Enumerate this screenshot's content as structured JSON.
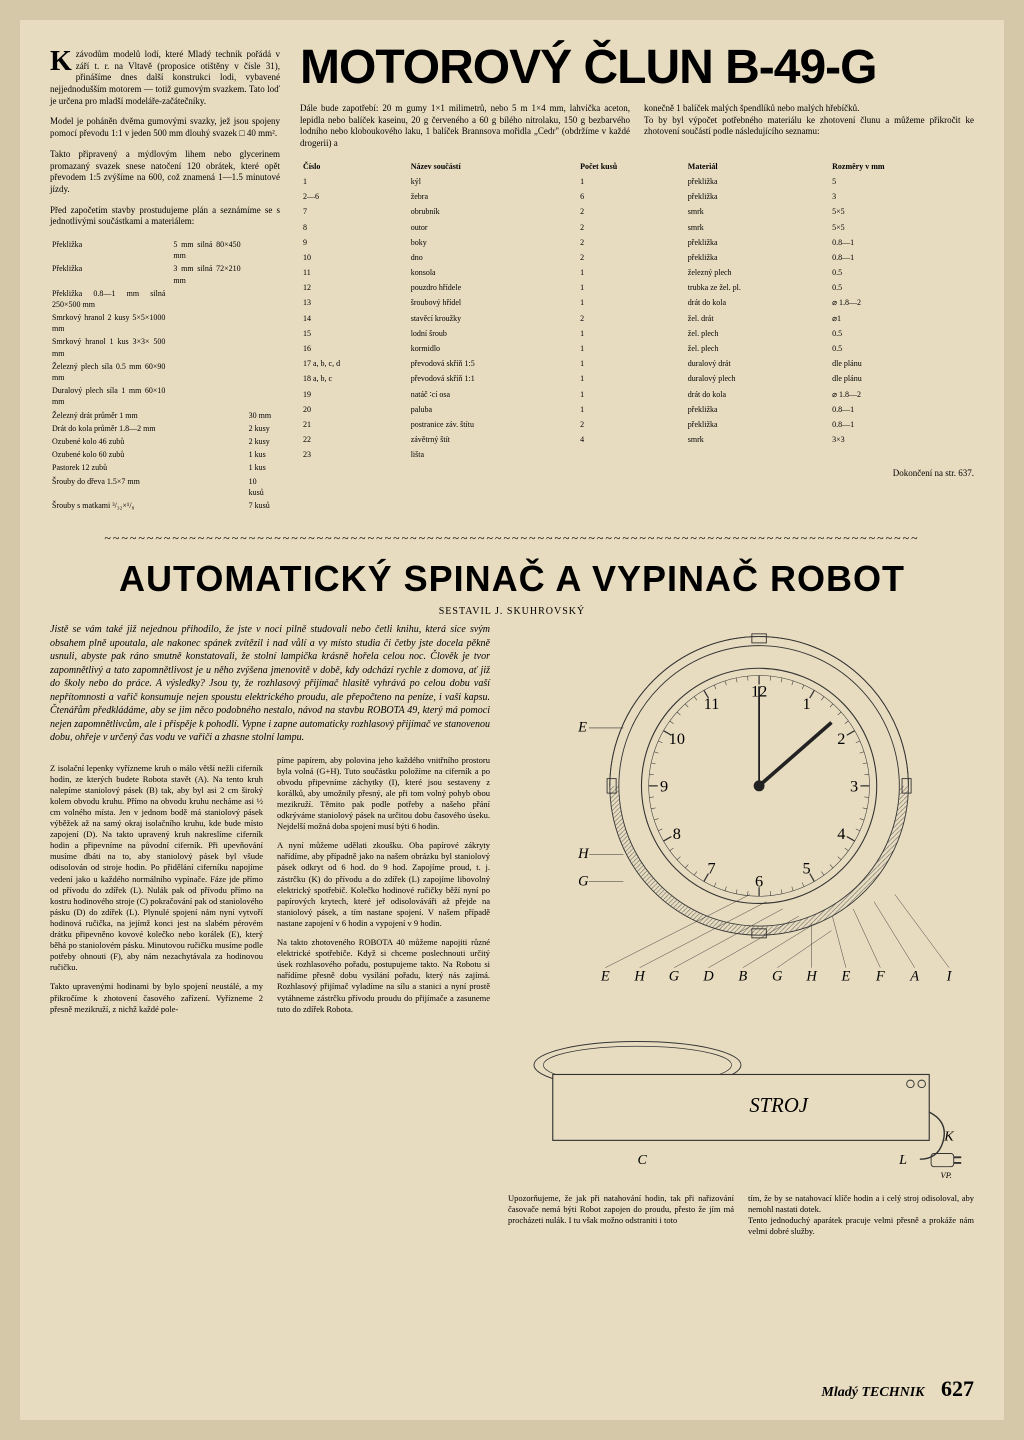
{
  "article1": {
    "dropcap": "K",
    "intro": " závodům modelů lodí, které Mladý technik pořádá v září t. r. na Vltavě (proposice otištěny v čísle 31), přinášíme dnes další konstrukci lodi, vybavené nejjednodušším motorem — totiž gumovým svazkem. Tato loď je určena pro mladší modeláře-začátečníky.",
    "para2": "Model je poháněn dvěma gumovými svazky, jež jsou spojeny pomocí převodu 1:1 v jeden 500 mm dlouhý svazek □ 40 mm².",
    "para3": "Takto připravený a mýdlovým lihem nebo glycerinem promazaný svazek snese natočení 120 obrátek, které opět převodem 1:5 zvýšíme na 600, což znamená 1—1.5 minutové jízdy.",
    "para4": "Před započetím stavby prostudujeme plán a seznámíme se s jednotlivými součástkami a materiálem:",
    "title": "MOTOROVÝ ČLUN B-49-G",
    "rightIntro": "Dále bude zapotřebí: 20 m gumy 1×1 milimetrů, nebo 5 m 1×4 mm, lahvička aceton, lepidla nebo balíček kaseinu, 20 g červeného a 60 g bílého nitrolaku, 150 g bezbarvého lodního nebo kloboukového laku, 1 balíček Brannsova mořidla „Cedr\" (obdržíme v každé drogerii) a",
    "rightIntro2": "konečně 1 balíček malých špendlíků nebo malých hřebíčků.",
    "rightIntro3": "To by byl výpočet potřebného materiálu ke zhotovení člunu a můžeme přikročit ke zhotovení součástí podle následujícího seznamu:",
    "materials": [
      [
        "Překližka",
        "5 mm silná 80×450 mm",
        ""
      ],
      [
        "Překližka",
        "3 mm silná 72×210 mm",
        ""
      ],
      [
        "Překližka 0.8—1 mm silná 250×500 mm",
        "",
        ""
      ],
      [
        "Smrkový hranol 2 kusy 5×5×1000 mm",
        "",
        ""
      ],
      [
        "Smrkový hranol 1 kus 3×3× 500 mm",
        "",
        ""
      ],
      [
        "Železný plech síla 0.5 mm 60×90 mm",
        "",
        ""
      ],
      [
        "Duralový plech síla 1 mm 60×10 mm",
        "",
        ""
      ],
      [
        "Železný drát průměr 1 mm",
        "",
        "30 mm"
      ],
      [
        "Drát do kola průměr 1.8—2 mm",
        "",
        "2 kusy"
      ],
      [
        "Ozubené kolo 46 zubů",
        "",
        "2 kusy"
      ],
      [
        "Ozubené kolo 60 zubů",
        "",
        "1 kus"
      ],
      [
        "Pastorek 12 zubů",
        "",
        "1 kus"
      ],
      [
        "Šrouby do dřeva 1.5×7 mm",
        "",
        "10 kusů"
      ],
      [
        "Šrouby s matkami ³/₃₂×¹/₈",
        "",
        "7 kusů"
      ]
    ],
    "partsHeaders": [
      "Číslo",
      "Název součástí",
      "Počet kusů",
      "Materiál",
      "Rozměry v mm"
    ],
    "parts": [
      [
        "1",
        "kýl",
        "1",
        "překližka",
        "5"
      ],
      [
        "2—6",
        "žebra",
        "6",
        "překližka",
        "3"
      ],
      [
        "7",
        "obrubník",
        "2",
        "smrk",
        "5×5"
      ],
      [
        "8",
        "outor",
        "2",
        "smrk",
        "5×5"
      ],
      [
        "9",
        "boky",
        "2",
        "překližka",
        "0.8—1"
      ],
      [
        "10",
        "dno",
        "2",
        "překližka",
        "0.8—1"
      ],
      [
        "11",
        "konsola",
        "1",
        "železný plech",
        "0.5"
      ],
      [
        "12",
        "pouzdro hřídele",
        "1",
        "trubka ze žel. pl.",
        "0.5"
      ],
      [
        "13",
        "šroubový hřídel",
        "1",
        "drát do kola",
        "⌀ 1.8—2"
      ],
      [
        "14",
        "stavěcí kroužky",
        "2",
        "žel. drát",
        "⌀1"
      ],
      [
        "15",
        "lodní šroub",
        "1",
        "žel. plech",
        "0.5"
      ],
      [
        "16",
        "kormidlo",
        "1",
        "žel. plech",
        "0.5"
      ],
      [
        "17 a, b, c, d",
        "převodová skříň 1:5",
        "1",
        "duralový drát",
        "dle plánu"
      ],
      [
        "18 a, b, c",
        "převodová skříň 1:1",
        "1",
        "duralový plech",
        "dle plánu"
      ],
      [
        "19",
        "natáč ∶cí osa",
        "1",
        "drát do kola",
        "⌀ 1.8—2"
      ],
      [
        "20",
        "paluba",
        "1",
        "překližka",
        "0.8—1"
      ],
      [
        "21",
        "postranice záv. štítu",
        "2",
        "překližka",
        "0.8—1"
      ],
      [
        "22",
        "závětrný štít",
        "4",
        "smrk",
        "3×3"
      ],
      [
        "23",
        "lišta",
        "",
        "",
        ""
      ]
    ],
    "continuation": "Dokončení na str. 637."
  },
  "article2": {
    "title": "AUTOMATICKÝ SPINAČ A VYPINAČ ROBOT",
    "author": "SESTAVIL J. SKUHROVSKÝ",
    "intro": "Jistě se vám také již nejednou přihodilo, že jste v noci pilně studovali nebo četli knihu, která sice svým obsahem plně upoutala, ale nakonec spánek zvítězil i nad vůlí a vy místo studia či četby jste docela pěkně usnuli, abyste pak ráno smutně konstatovali, že stolní lampička krásně hořela celou noc. Člověk je tvor zapomnětlivý a tato zapomnětlivost je u něho zvýšena jmenovitě v době, kdy odchází rychle z domova, ať již do školy nebo do práce. A výsledky? Jsou ty, že rozhlasový přijímač hlasitě vyhrává po celou dobu vaší nepřítomnosti a vařič konsumuje nejen spoustu elektrického proudu, ale přepočteno na peníze, i vaši kapsu. Čtenářům předkládáme, aby se jim něco podobného nestalo, návod na stavbu ROBOTA 49, který má pomoci nejen zapomnětlivcům, ale i přispěje k pohodlí. Vypne i zapne automaticky rozhlasový přijímač ve stanovenou dobu, ohřeje v určený čas vodu ve vařiči a zhasne stolní lampu.",
    "body1": "Z isolační lepenky vyřízneme kruh o málo větší nežli ciferník hodin, ze kterých budete Robota stavět (A). Na tento kruh nalepíme staniolový pásek (B) tak, aby byl asi 2 cm široký kolem obvodu kruhu. Přímo na obvodu kruhu necháme asi ½ cm volného místa. Jen v jednom bodě má staniolový pásek výběžek až na samý okraj isolačního kruhu, kde bude místo zapojení (D). Na takto upravený kruh nakreslíme ciferník hodin a připevníme na původní ciferník. Při upevňování musíme dbáti na to, aby staniolový pásek byl všude odisolován od stroje hodin. Po přidělání ciferníku napojíme vedení jako u každého normálního vypínače. Fáze jde přímo od přívodu do zdířek (L). Nulák pak od přívodu přímo na kostru hodinového stroje (C) pokračování pak od staniolového pásku (D) do zdířek (L). Plynulé spojení nám nyní vytvoří hodinová ručička, na jejímž konci jest na slabém pérovém drátku připevněno kovové kolečko nebo korálek (E), který běhá po staniolovém pásku. Minutovou ručičku musíme podle potřeby ohnouti (F), aby nám nezachytávala za hodinovou ručičku.",
    "body2": "Takto upravenými hodinami by bylo spojení neustálé, a my přikročíme k zhotovení časového zařízení. Vyřízneme 2 přesně mezikruží, z nichž každé pole-",
    "body3": "píme papírem, aby polovina jeho každého vnitřního prostoru byla volná (G+H). Tuto součástku položíme na ciferník a po obvodu připevníme záchytky (I), které jsou sestaveny z korálků, aby umožnily přesný, ale při tom volný pohyb obou mezikruží. Těmito pak podle potřeby a našeho přání odkrýváme staniolový pásek na určitou dobu časového úseku. Nejdelší možná doba spojení musí býti 6 hodin.",
    "body4": "A nyní můžeme udělati zkoušku. Oba papírové zákryty nařídíme, aby případně jako na našem obrázku byl staniolový pásek odkryt od 6 hod. do 9 hod. Zapojíme proud, t. j. zástrčku (K) do přívodu a do zdířek (L) zapojíme libovolný elektrický spotřebič. Kolečko hodinové ručičky běží nyní po papírových krytech, které jeř odisolováváři až přejde na staniolový pásek, a tím nastane spojení. V našem případě nastane zapojení v 6 hodin a vypojení v 9 hodin.",
    "body5": "Na takto zhotoveného ROBOTA 40 můžeme napojiti různé elektrické spotřebiče. Když si chceme poslechnouti určitý úsek rozhlasového pořadu, postupujeme takto. Na Robotu si nařídíme přesně dobu vysílání pořadu, který nás zajímá. Rozhlasový přijímač vyladíme na sílu a stanici a nyní prostě vytáhneme zástrčku přívodu proudu do přijímače a zasuneme tuto do zdířek Robota.",
    "bottom1": "Upozorňujeme, že jak při natahování hodin, tak při nařizování časovače nemá býti Robot zapojen do proudu, přesto že jím má procházeti nulák. I tu však možno odstraniti i toto",
    "bottom2": "tím, že by se natahovací klíče hodin a i celý stroj odisoloval, aby nemohl nastati dotek.",
    "bottom3": "Tento jednoduchý aparátek pracuje velmi přesně a prokáže nám velmi dobré služby.",
    "clockNumbers": [
      "12",
      "1",
      "2",
      "3",
      "4",
      "5",
      "6",
      "7",
      "8",
      "9",
      "10",
      "11"
    ],
    "clockLabels": [
      "E",
      "H",
      "G",
      "D",
      "B",
      "G",
      "H",
      "E",
      "F",
      "A",
      "I"
    ],
    "strojLabel": "STROJ",
    "strojLetters": [
      "C",
      "L",
      "K"
    ]
  },
  "footer": {
    "brand": "Mladý TECHNIK",
    "page": "627"
  }
}
